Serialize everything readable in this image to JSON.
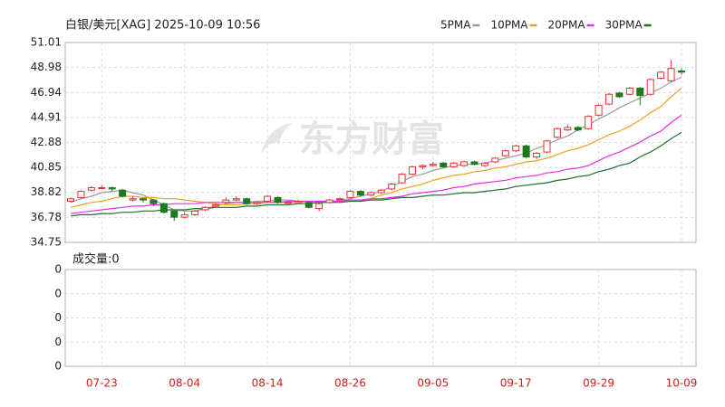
{
  "chart_data": [
    {
      "type": "candlestick",
      "title": "白银/美元[XAG] 2025-10-09 10:56",
      "watermark": "东方财富",
      "categories": [
        null,
        null,
        null,
        "07-23",
        null,
        null,
        null,
        null,
        null,
        null,
        null,
        "08-04",
        null,
        null,
        null,
        null,
        null,
        null,
        null,
        "08-14",
        null,
        null,
        null,
        null,
        null,
        null,
        null,
        "08-26",
        null,
        null,
        null,
        null,
        null,
        null,
        null,
        "09-05",
        null,
        null,
        null,
        null,
        null,
        null,
        null,
        "09-17",
        null,
        null,
        null,
        null,
        null,
        null,
        null,
        "09-29",
        null,
        null,
        null,
        null,
        null,
        null,
        null,
        "10-09"
      ],
      "open": [
        38.1,
        38.4,
        39.0,
        39.2,
        39.2,
        39.0,
        38.2,
        38.3,
        38.2,
        37.9,
        37.3,
        36.8,
        37.0,
        37.4,
        37.7,
        38.0,
        38.2,
        38.3,
        37.9,
        38.1,
        38.4,
        38.0,
        38.0,
        38.0,
        37.5,
        38.0,
        38.3,
        38.4,
        38.9,
        38.6,
        38.8,
        39.1,
        39.6,
        40.3,
        40.9,
        41.0,
        41.2,
        40.9,
        41.0,
        41.3,
        41.0,
        41.3,
        41.8,
        42.2,
        42.6,
        41.7,
        42.1,
        43.3,
        43.9,
        44.1,
        44.0,
        45.1,
        46.0,
        46.9,
        46.8,
        47.3,
        46.8,
        48.1,
        47.9,
        48.7
      ],
      "high": [
        38.4,
        39.0,
        39.3,
        39.4,
        39.3,
        39.1,
        38.5,
        38.4,
        38.3,
        38.0,
        37.4,
        37.2,
        37.4,
        37.7,
        37.9,
        38.4,
        38.5,
        38.4,
        38.1,
        38.6,
        38.5,
        38.1,
        38.2,
        38.1,
        38.0,
        38.3,
        38.4,
        39.0,
        39.0,
        38.9,
        39.1,
        39.6,
        40.4,
        41.0,
        41.1,
        41.3,
        41.3,
        41.3,
        41.4,
        41.4,
        41.3,
        41.7,
        42.3,
        42.7,
        42.7,
        42.1,
        43.1,
        44.1,
        44.3,
        44.2,
        45.1,
        46.0,
        46.9,
        47.0,
        47.4,
        47.4,
        48.1,
        48.7,
        49.6,
        48.9
      ],
      "low": [
        38.0,
        38.3,
        38.9,
        39.1,
        38.9,
        38.4,
        38.1,
        38.0,
        37.7,
        37.1,
        36.5,
        36.7,
        36.9,
        37.3,
        37.6,
        37.9,
        38.1,
        37.8,
        37.8,
        38.0,
        37.9,
        37.9,
        37.9,
        37.5,
        37.3,
        37.9,
        38.2,
        38.3,
        38.5,
        38.5,
        38.7,
        39.0,
        39.5,
        40.2,
        40.7,
        40.9,
        40.8,
        40.8,
        40.9,
        41.0,
        40.9,
        41.2,
        41.7,
        42.1,
        41.6,
        41.5,
        42.0,
        43.2,
        43.8,
        43.8,
        43.9,
        45.0,
        45.9,
        46.5,
        46.7,
        45.9,
        46.7,
        48.0,
        47.8,
        48.4
      ],
      "close": [
        38.3,
        38.9,
        39.2,
        39.2,
        39.1,
        38.5,
        38.3,
        38.2,
        37.9,
        37.2,
        36.8,
        37.0,
        37.3,
        37.6,
        37.8,
        38.2,
        38.3,
        37.9,
        38.0,
        38.5,
        38.0,
        38.0,
        38.1,
        37.6,
        37.9,
        38.2,
        38.3,
        38.9,
        38.6,
        38.8,
        39.0,
        39.5,
        40.3,
        40.9,
        41.0,
        41.1,
        40.9,
        41.2,
        41.3,
        41.1,
        41.2,
        41.6,
        42.2,
        42.6,
        41.7,
        42.0,
        43.0,
        44.0,
        44.1,
        43.9,
        45.0,
        45.9,
        46.8,
        46.6,
        47.3,
        46.7,
        48.0,
        48.6,
        48.9,
        48.6
      ],
      "up_color": "#e83030",
      "down_color": "#1e7a1e",
      "series": [
        {
          "name": "5PMA",
          "color": "#9a9a9a",
          "values": [
            38.0,
            38.3,
            38.5,
            38.8,
            38.9,
            39.0,
            38.8,
            38.6,
            38.2,
            37.8,
            37.4,
            37.3,
            37.3,
            37.5,
            37.7,
            37.9,
            38.0,
            38.0,
            38.1,
            38.1,
            38.2,
            38.2,
            38.1,
            38.1,
            38.0,
            38.0,
            38.2,
            38.3,
            38.5,
            38.7,
            38.9,
            39.3,
            39.7,
            40.1,
            40.3,
            40.6,
            40.8,
            41.0,
            41.1,
            41.1,
            41.2,
            41.4,
            41.6,
            41.8,
            42.0,
            42.4,
            42.7,
            43.1,
            43.4,
            43.9,
            44.3,
            44.8,
            45.2,
            45.7,
            46.1,
            46.5,
            46.9,
            47.3,
            47.8,
            48.2
          ]
        },
        {
          "name": "10PMA",
          "color": "#f0a020",
          "values": [
            37.6,
            37.8,
            38.0,
            38.1,
            38.3,
            38.5,
            38.5,
            38.4,
            38.4,
            38.3,
            38.3,
            38.2,
            38.1,
            38.0,
            37.9,
            37.8,
            37.8,
            37.9,
            37.9,
            38.0,
            38.0,
            38.0,
            38.0,
            38.1,
            38.1,
            38.1,
            38.1,
            38.2,
            38.2,
            38.3,
            38.6,
            38.8,
            39.1,
            39.3,
            39.5,
            39.8,
            40.0,
            40.2,
            40.3,
            40.5,
            40.6,
            40.8,
            40.9,
            41.1,
            41.3,
            41.4,
            41.6,
            41.9,
            42.2,
            42.4,
            42.7,
            43.1,
            43.5,
            43.8,
            44.2,
            44.7,
            45.3,
            45.8,
            46.6,
            47.3
          ]
        },
        {
          "name": "20PMA",
          "color": "#e030e0",
          "values": [
            37.1,
            37.2,
            37.3,
            37.4,
            37.5,
            37.6,
            37.7,
            37.7,
            37.8,
            37.8,
            37.9,
            37.9,
            37.9,
            38.0,
            38.0,
            38.0,
            38.0,
            38.0,
            38.0,
            38.0,
            38.0,
            38.1,
            38.1,
            38.1,
            38.1,
            38.1,
            38.1,
            38.2,
            38.2,
            38.3,
            38.3,
            38.4,
            38.5,
            38.7,
            38.8,
            38.9,
            39.0,
            39.2,
            39.3,
            39.5,
            39.6,
            39.7,
            39.8,
            40.0,
            40.1,
            40.2,
            40.4,
            40.5,
            40.7,
            40.8,
            41.0,
            41.4,
            41.8,
            42.1,
            42.5,
            42.9,
            43.4,
            43.8,
            44.5,
            45.1
          ]
        },
        {
          "name": "30PMA",
          "color": "#1e6e2e",
          "values": [
            36.9,
            37.0,
            37.0,
            37.1,
            37.1,
            37.2,
            37.2,
            37.3,
            37.3,
            37.4,
            37.4,
            37.4,
            37.5,
            37.5,
            37.6,
            37.6,
            37.6,
            37.7,
            37.7,
            37.8,
            37.8,
            37.8,
            37.9,
            37.9,
            38.0,
            38.0,
            38.0,
            38.1,
            38.1,
            38.2,
            38.2,
            38.3,
            38.4,
            38.4,
            38.5,
            38.6,
            38.6,
            38.7,
            38.8,
            38.8,
            38.9,
            39.0,
            39.1,
            39.3,
            39.4,
            39.5,
            39.6,
            39.8,
            39.9,
            40.1,
            40.2,
            40.5,
            40.7,
            41.0,
            41.2,
            41.7,
            42.1,
            42.6,
            43.2,
            43.7
          ]
        }
      ],
      "ylim": [
        34.75,
        51.01
      ],
      "yticks": [
        51.01,
        48.98,
        46.94,
        44.91,
        42.88,
        40.85,
        38.82,
        36.78,
        34.75
      ],
      "grid": true
    },
    {
      "type": "volume",
      "title": "成交量:0",
      "ytick_labels": [
        "0",
        "0",
        "0",
        "0",
        "0"
      ]
    }
  ]
}
